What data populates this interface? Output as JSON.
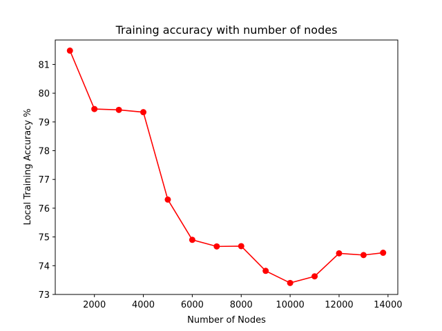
{
  "chart_data": {
    "type": "line",
    "title": "Training accuracy with number of nodes",
    "xlabel": "Number of Nodes",
    "ylabel": "Local Training Accuracy %",
    "xlim": [
      400,
      14400
    ],
    "ylim": [
      73,
      81.85
    ],
    "xticks": [
      2000,
      4000,
      6000,
      8000,
      10000,
      12000,
      14000
    ],
    "yticks": [
      73,
      74,
      75,
      76,
      77,
      78,
      79,
      80,
      81
    ],
    "grid": false,
    "legend": "none",
    "series": [
      {
        "color": "#ff0000",
        "marker": "circle",
        "x": [
          1000,
          2000,
          3000,
          4000,
          5000,
          6000,
          7000,
          8000,
          9000,
          10000,
          11000,
          12000,
          13000,
          13800
        ],
        "y": [
          81.48,
          79.45,
          79.42,
          79.34,
          76.3,
          74.9,
          74.67,
          74.68,
          73.82,
          73.4,
          73.63,
          74.43,
          74.37,
          74.45
        ]
      }
    ]
  }
}
